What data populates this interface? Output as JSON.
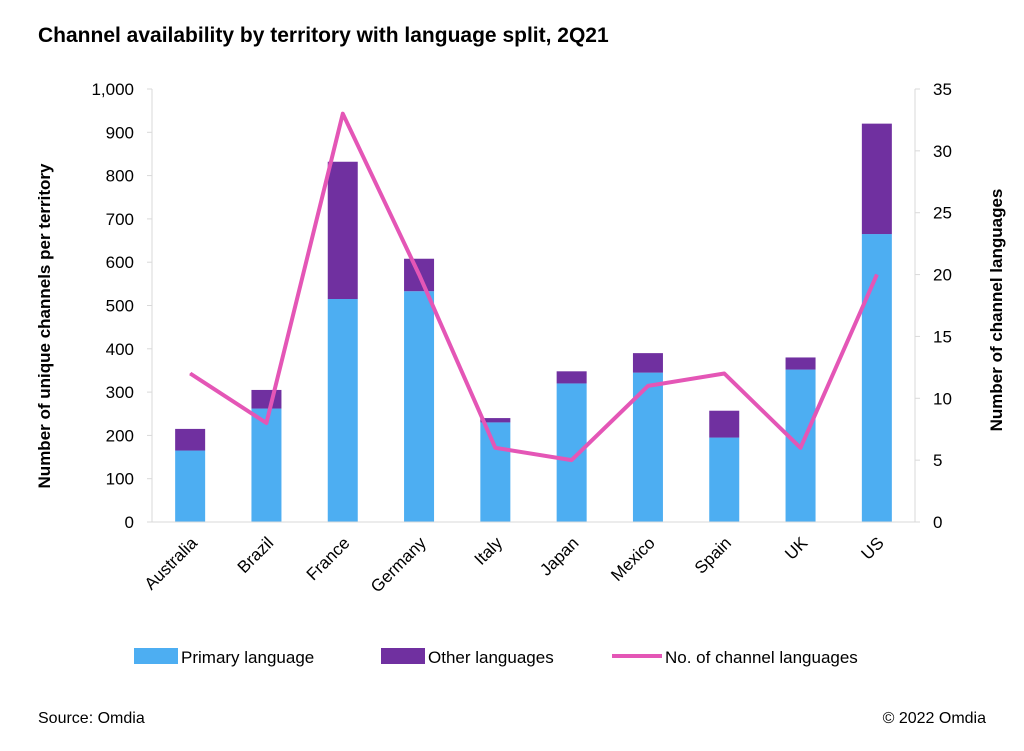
{
  "title": "Channel availability by territory with language split, 2Q21",
  "source": "Source: Omdia",
  "copyright": "© 2022 Omdia",
  "colors": {
    "primary": "#4DAEF2",
    "other": "#7030A0",
    "line": "#E456B6",
    "axis": "#D9D9D9"
  },
  "chart_data": {
    "type": "bar",
    "stacked": true,
    "categories": [
      "Australia",
      "Brazil",
      "France",
      "Germany",
      "Italy",
      "Japan",
      "Mexico",
      "Spain",
      "UK",
      "US"
    ],
    "series": [
      {
        "name": "Primary language",
        "axis": "left",
        "type": "bar",
        "values": [
          165,
          262,
          515,
          533,
          230,
          320,
          345,
          195,
          352,
          665
        ]
      },
      {
        "name": "Other languages",
        "axis": "left",
        "type": "bar",
        "values": [
          50,
          43,
          317,
          75,
          10,
          28,
          45,
          62,
          28,
          255
        ]
      },
      {
        "name": "No. of channel languages",
        "axis": "right",
        "type": "line",
        "values": [
          12,
          8,
          33,
          20,
          6,
          5,
          11,
          12,
          6,
          20
        ]
      }
    ],
    "ylabel": "Number of unique channels per territory",
    "y2label": "Number of channel languages",
    "ylim": [
      0,
      1000
    ],
    "y2lim": [
      0,
      35
    ],
    "yticks": [
      "0",
      "100",
      "200",
      "300",
      "400",
      "500",
      "600",
      "700",
      "800",
      "900",
      "1,000"
    ],
    "y2ticks": [
      "0",
      "5",
      "10",
      "15",
      "20",
      "25",
      "30",
      "35"
    ],
    "grid": false,
    "legend": "bottom"
  }
}
